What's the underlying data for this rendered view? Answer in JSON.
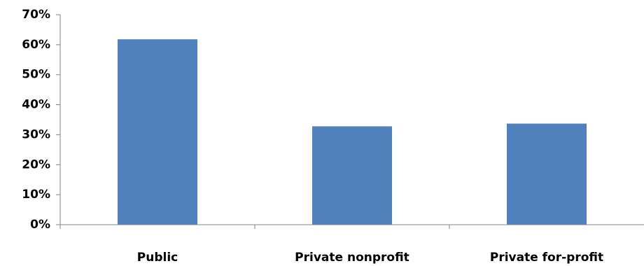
{
  "chart_data": {
    "type": "bar",
    "categories": [
      "Public",
      "Private nonprofit",
      "Private for-profit"
    ],
    "values": [
      0.618,
      0.328,
      0.337
    ],
    "ylim": [
      0,
      0.7
    ],
    "yticks": [
      0,
      0.1,
      0.2,
      0.3,
      0.4,
      0.5,
      0.6,
      0.7
    ],
    "ytick_labels": [
      "0%",
      "10%",
      "20%",
      "30%",
      "40%",
      "50%",
      "60%",
      "70%"
    ],
    "grid": false,
    "legend": "none",
    "bar_color": "#4F81BD"
  }
}
